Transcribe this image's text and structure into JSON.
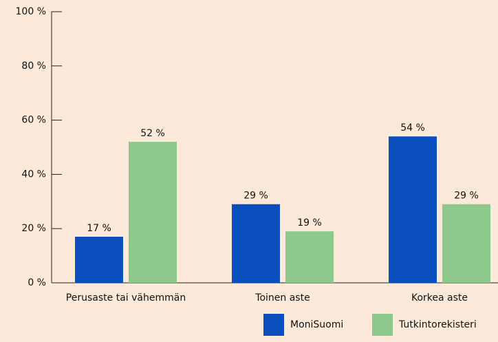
{
  "chart_data": {
    "type": "bar",
    "categories": [
      "Perusaste tai vähemmän",
      "Toinen aste",
      "Korkea aste"
    ],
    "series": [
      {
        "name": "MoniSuomi",
        "color": "#0b4fbf",
        "values": [
          17,
          29,
          54
        ],
        "value_labels": [
          "17 %",
          "29 %",
          "54 %"
        ]
      },
      {
        "name": "Tutkintorekisteri",
        "color": "#8dc98a",
        "values": [
          52,
          19,
          29
        ],
        "value_labels": [
          "52 %",
          "19 %",
          "29 %"
        ]
      }
    ],
    "ylim": [
      0,
      100
    ],
    "yticks": [
      {
        "value": 0,
        "label": "0 %"
      },
      {
        "value": 20,
        "label": "20 %"
      },
      {
        "value": 40,
        "label": "40 %"
      },
      {
        "value": 60,
        "label": "60 %"
      },
      {
        "value": 80,
        "label": "80 %"
      },
      {
        "value": 100,
        "label": "100 %"
      }
    ],
    "legend": "bottom-right"
  }
}
